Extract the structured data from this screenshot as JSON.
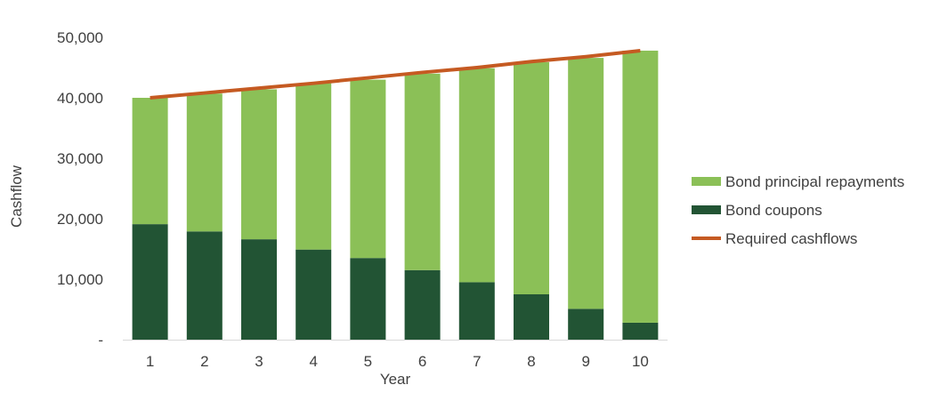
{
  "chart_data": {
    "type": "bar",
    "stacked": true,
    "categories": [
      "1",
      "2",
      "3",
      "4",
      "5",
      "6",
      "7",
      "8",
      "9",
      "10"
    ],
    "series": [
      {
        "name": "Bond principal repayments",
        "kind": "bar",
        "color": "#8bc057",
        "values": [
          20900,
          22800,
          24800,
          27500,
          29500,
          32500,
          35400,
          38400,
          41500,
          45000
        ]
      },
      {
        "name": "Bond coupons",
        "kind": "bar",
        "color": "#225434",
        "values": [
          19100,
          17900,
          16600,
          14900,
          13500,
          11500,
          9500,
          7500,
          5100,
          2800
        ]
      },
      {
        "name": "Required cashflows",
        "kind": "line",
        "color": "#c55a22",
        "values": [
          40000,
          40800,
          41600,
          42400,
          43300,
          44200,
          45000,
          46000,
          46800,
          47800
        ]
      }
    ],
    "xlabel": "Year",
    "ylabel": "Cashflow",
    "ylim": [
      0,
      50000
    ],
    "yticks": [
      "-",
      "10,000",
      "20,000",
      "30,000",
      "40,000",
      "50,000"
    ],
    "grid": false,
    "legend_position": "right"
  }
}
